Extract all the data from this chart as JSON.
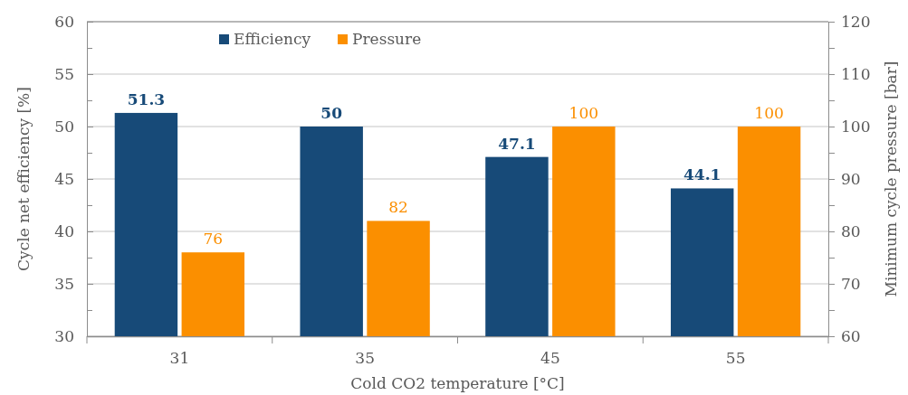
{
  "chart_data": {
    "type": "bar",
    "xlabel": "Cold CO2 temperature [°C]",
    "ylabel": "Cycle net efficiency [%]",
    "y2label": "Minimum cycle pressure [bar]",
    "categories": [
      "31",
      "35",
      "45",
      "55"
    ],
    "series": [
      {
        "name": "Efficiency",
        "color": "#174a78",
        "values": [
          51.3,
          50,
          47.1,
          44.1
        ]
      },
      {
        "name": "Pressure",
        "color": "#fb8f00",
        "values": [
          76,
          82,
          100,
          100
        ],
        "axis": "y2"
      }
    ],
    "ylim": [
      30,
      60
    ],
    "yticks": [
      30,
      {
        "value": 32.5,
        "label": null
      },
      35,
      {
        "value": 37.5,
        "label": null
      },
      40,
      {
        "value": 42.5,
        "label": null
      },
      45,
      {
        "value": 47.5,
        "label": null
      },
      50,
      {
        "value": 52.5,
        "label": null
      },
      55,
      {
        "value": 57.5,
        "label": null
      },
      60
    ],
    "y2lim": [
      60,
      120
    ],
    "y2ticks": [
      60,
      {
        "value": 65,
        "label": null
      },
      70,
      {
        "value": 75,
        "label": null
      },
      80,
      {
        "value": 85,
        "label": null
      },
      90,
      {
        "value": 95,
        "label": null
      },
      100,
      {
        "value": 105,
        "label": null
      },
      110,
      {
        "value": 115,
        "label": null
      },
      120
    ],
    "grid": "y",
    "legend": "top",
    "data_labels": true
  }
}
